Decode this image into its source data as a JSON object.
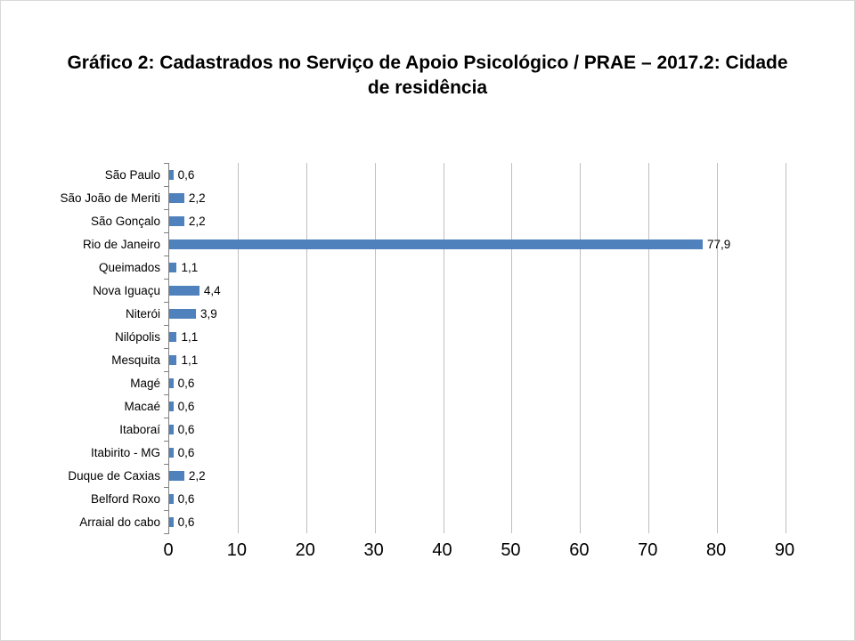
{
  "title": "Gráfico 2: Cadastrados no Serviço de Apoio Psicológico / PRAE – 2017.2: Cidade de residência",
  "chart_data": {
    "type": "bar",
    "orientation": "horizontal",
    "title": "Gráfico 2: Cadastrados no Serviço de Apoio Psicológico / PRAE – 2017.2: Cidade de residência",
    "categories": [
      "São Paulo",
      "São João de Meriti",
      "São Gonçalo",
      "Rio de Janeiro",
      "Queimados",
      "Nova Iguaçu",
      "Niterói",
      "Nilópolis",
      "Mesquita",
      "Magé",
      "Macaé",
      "Itaboraí",
      "Itabirito - MG",
      "Duque de Caxias",
      "Belford Roxo",
      "Arraial do cabo"
    ],
    "values": [
      0.6,
      2.2,
      2.2,
      77.9,
      1.1,
      4.4,
      3.9,
      1.1,
      1.1,
      0.6,
      0.6,
      0.6,
      0.6,
      2.2,
      0.6,
      0.6
    ],
    "value_labels": [
      "0,6",
      "2,2",
      "2,2",
      "77,9",
      "1,1",
      "4,4",
      "3,9",
      "1,1",
      "1,1",
      "0,6",
      "0,6",
      "0,6",
      "0,6",
      "2,2",
      "0,6",
      "0,6"
    ],
    "x_ticks": [
      0,
      10,
      20,
      30,
      40,
      50,
      60,
      70,
      80,
      90
    ],
    "xlim": [
      0,
      90
    ],
    "xlabel": "",
    "ylabel": "",
    "legend": "none",
    "grid": "vertical",
    "bar_color": "#4f81bd",
    "gridline_color": "#bfbfbf",
    "axis_color": "#808080"
  }
}
